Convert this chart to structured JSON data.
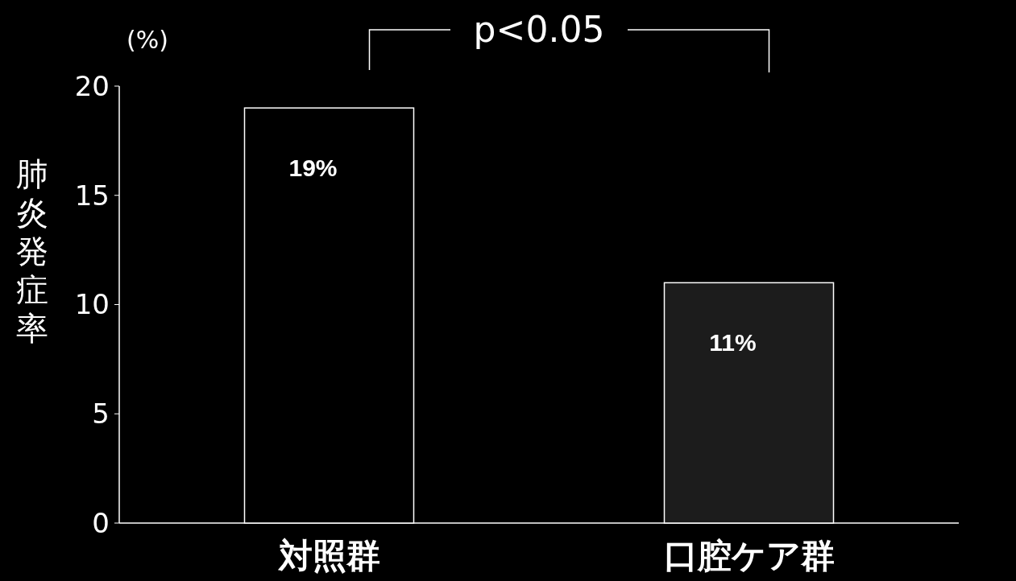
{
  "chart_data": {
    "type": "bar",
    "categories": [
      "対照群",
      "口腔ケア群"
    ],
    "values": [
      19,
      11
    ],
    "colors": [
      "#000000",
      "#1c1c1c"
    ],
    "value_labels": [
      "19%",
      "11%"
    ],
    "ylabel": "肺炎発症率",
    "ylim": [
      0,
      20
    ],
    "yticks": [
      0,
      5,
      10,
      15,
      20
    ],
    "annotations": [
      "(%)",
      "p<0.05"
    ]
  }
}
